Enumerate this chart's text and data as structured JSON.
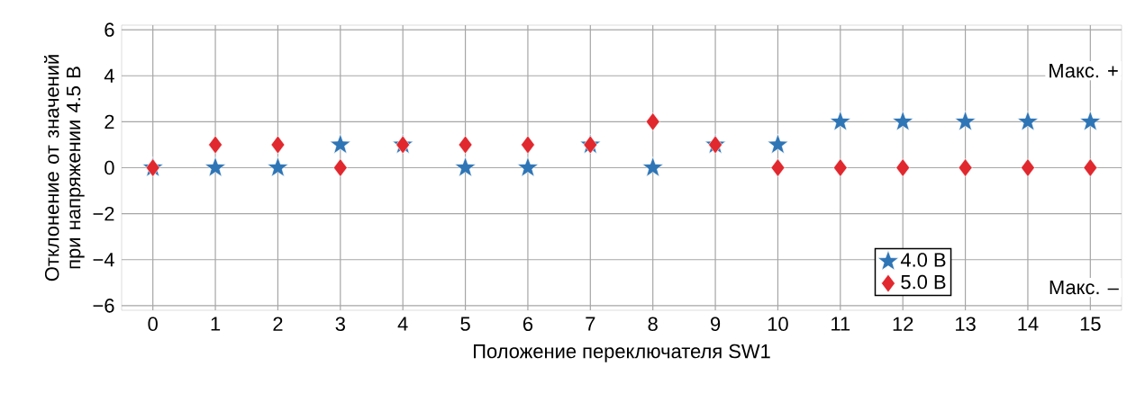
{
  "chart_data": {
    "type": "scatter",
    "xlabel": "Положение переключателя SW1",
    "ylabel": "Отклонение от значений при напряжении 4.5 В",
    "categories": [
      "0",
      "1",
      "2",
      "3",
      "4",
      "5",
      "6",
      "7",
      "8",
      "9",
      "10",
      "11",
      "12",
      "13",
      "14",
      "15"
    ],
    "series": [
      {
        "name": "4.0 В",
        "color": "#2e75b6",
        "marker": "star",
        "values": [
          0,
          0,
          0,
          1,
          1,
          0,
          0,
          1,
          0,
          1,
          1,
          2,
          2,
          2,
          2,
          2
        ]
      },
      {
        "name": "5.0 В",
        "color": "#e0282e",
        "marker": "diamond",
        "values": [
          0,
          1,
          1,
          0,
          1,
          1,
          1,
          1,
          2,
          1,
          0,
          0,
          0,
          0,
          0,
          0
        ]
      }
    ],
    "ylim": [
      -6.2,
      6.2
    ],
    "yticks": [
      {
        "value": -6,
        "label": "−6"
      },
      {
        "value": -4,
        "label": "−4"
      },
      {
        "value": -2,
        "label": "−2"
      },
      0,
      2,
      4,
      6
    ],
    "grid": true,
    "legend": "bottom right",
    "annotations": [
      "Макс. +",
      "Макс. –"
    ]
  }
}
